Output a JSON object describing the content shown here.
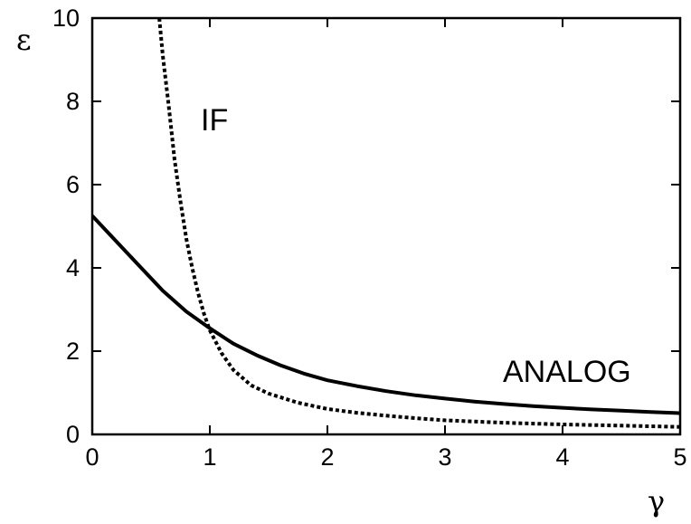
{
  "chart_data": {
    "type": "line",
    "title": "",
    "xlabel": "γ",
    "ylabel": "ε",
    "xlim": [
      0,
      5
    ],
    "ylim": [
      0,
      10
    ],
    "x_ticks": [
      "0",
      "1",
      "2",
      "3",
      "4",
      "5"
    ],
    "y_ticks": [
      "0",
      "2",
      "4",
      "6",
      "8",
      "10"
    ],
    "grid": false,
    "legend": "none",
    "annotations": [
      "IF",
      "ANALOG"
    ],
    "series": [
      {
        "label": "ANALOG",
        "style": "solid",
        "color": "#000000",
        "points": [
          [
            0.0,
            5.25
          ],
          [
            0.2,
            4.65
          ],
          [
            0.4,
            4.05
          ],
          [
            0.6,
            3.45
          ],
          [
            0.8,
            2.95
          ],
          [
            1.0,
            2.55
          ],
          [
            1.2,
            2.18
          ],
          [
            1.4,
            1.9
          ],
          [
            1.6,
            1.66
          ],
          [
            1.8,
            1.46
          ],
          [
            2.0,
            1.3
          ],
          [
            2.25,
            1.16
          ],
          [
            2.5,
            1.04
          ],
          [
            2.75,
            0.94
          ],
          [
            3.0,
            0.86
          ],
          [
            3.25,
            0.79
          ],
          [
            3.5,
            0.73
          ],
          [
            3.75,
            0.68
          ],
          [
            4.0,
            0.64
          ],
          [
            4.25,
            0.6
          ],
          [
            4.5,
            0.57
          ],
          [
            4.75,
            0.54
          ],
          [
            5.0,
            0.51
          ]
        ]
      },
      {
        "label": "IF",
        "style": "dotted",
        "color": "#000000",
        "points": [
          [
            0.57,
            10.0
          ],
          [
            0.6,
            9.1
          ],
          [
            0.65,
            7.9
          ],
          [
            0.7,
            6.6
          ],
          [
            0.75,
            5.6
          ],
          [
            0.8,
            4.7
          ],
          [
            0.85,
            4.0
          ],
          [
            0.9,
            3.4
          ],
          [
            0.95,
            2.9
          ],
          [
            1.0,
            2.5
          ],
          [
            1.1,
            1.95
          ],
          [
            1.2,
            1.55
          ],
          [
            1.35,
            1.18
          ],
          [
            1.5,
            0.98
          ],
          [
            1.75,
            0.76
          ],
          [
            2.0,
            0.61
          ],
          [
            2.25,
            0.52
          ],
          [
            2.5,
            0.45
          ],
          [
            2.75,
            0.39
          ],
          [
            3.0,
            0.34
          ],
          [
            3.5,
            0.28
          ],
          [
            4.0,
            0.24
          ],
          [
            4.5,
            0.21
          ],
          [
            5.0,
            0.18
          ]
        ]
      }
    ]
  }
}
